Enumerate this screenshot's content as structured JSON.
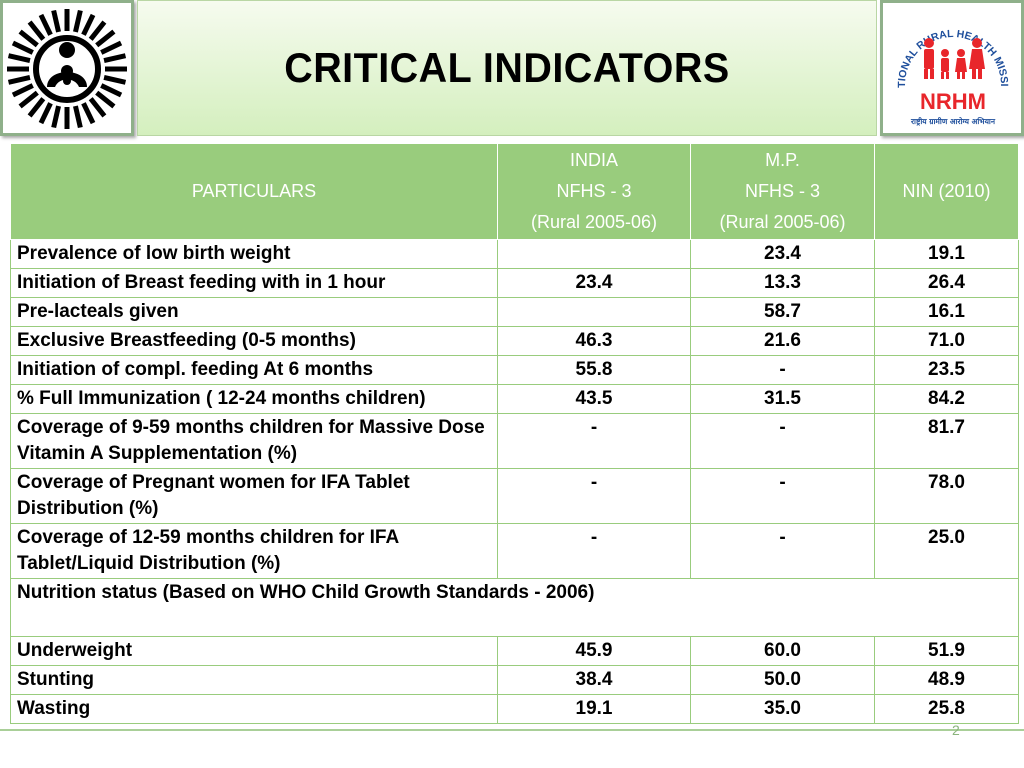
{
  "slide": {
    "title": "CRITICAL INDICATORS",
    "page_number": "2"
  },
  "logos": {
    "left": {
      "icon": "mother-child-emblem-icon"
    },
    "right": {
      "icon": "nrhm-family-logo-icon",
      "arc_text": "NATIONAL RURAL HEALTH MISSION",
      "acronym": "NRHM",
      "hindi_text": "राष्ट्रीय ग्रामीण आरोग्य अभियान"
    }
  },
  "colors": {
    "header_fill": "#99cc7d",
    "grid_line": "#99cc7d",
    "title_gradient_top": "#f6fbef",
    "title_gradient_bottom": "#d4efbe",
    "nrhm_red": "#e8262b"
  },
  "table": {
    "header": {
      "particulars": "PARTICULARS",
      "india": [
        "INDIA",
        "NFHS - 3",
        "(Rural 2005-06)"
      ],
      "mp": [
        "M.P.",
        "NFHS - 3",
        "(Rural 2005-06)"
      ],
      "nin": "NIN (2010)"
    },
    "rows": [
      {
        "label": "Prevalence of low birth weight",
        "india": "",
        "mp": "23.4",
        "nin": "19.1"
      },
      {
        "label": "Initiation of Breast feeding with in 1 hour",
        "india": "23.4",
        "mp": "13.3",
        "nin": "26.4"
      },
      {
        "label": "Pre-lacteals given",
        "india": "",
        "mp": "58.7",
        "nin": "16.1"
      },
      {
        "label": "Exclusive Breastfeeding (0-5 months)",
        "india": "46.3",
        "mp": "21.6",
        "nin": "71.0"
      },
      {
        "label": "Initiation of compl. feeding At 6 months",
        "india": "55.8",
        "mp": "-",
        "nin": "23.5"
      },
      {
        "label": "% Full Immunization ( 12-24 months children)",
        "india": "43.5",
        "mp": "31.5",
        "nin": "84.2"
      },
      {
        "label": "Coverage of 9-59 months children for Massive Dose Vitamin A Supplementation (%)",
        "india": "-",
        "mp": "-",
        "nin": "81.7"
      },
      {
        "label": "Coverage of Pregnant women for IFA Tablet Distribution (%)",
        "india": "-",
        "mp": "-",
        "nin": "78.0"
      },
      {
        "label": "Coverage of 12-59 months children for IFA Tablet/Liquid Distribution (%)",
        "india": "-",
        "mp": "-",
        "nin": "25.0"
      }
    ],
    "section_label": "Nutrition status (Based on WHO Child Growth Standards - 2006)",
    "nutrition_rows": [
      {
        "label": "Underweight",
        "india": "45.9",
        "mp": "60.0",
        "nin": "51.9"
      },
      {
        "label": "Stunting",
        "india": "38.4",
        "mp": "50.0",
        "nin": "48.9"
      },
      {
        "label": "Wasting",
        "india": "19.1",
        "mp": "35.0",
        "nin": "25.8"
      }
    ]
  }
}
